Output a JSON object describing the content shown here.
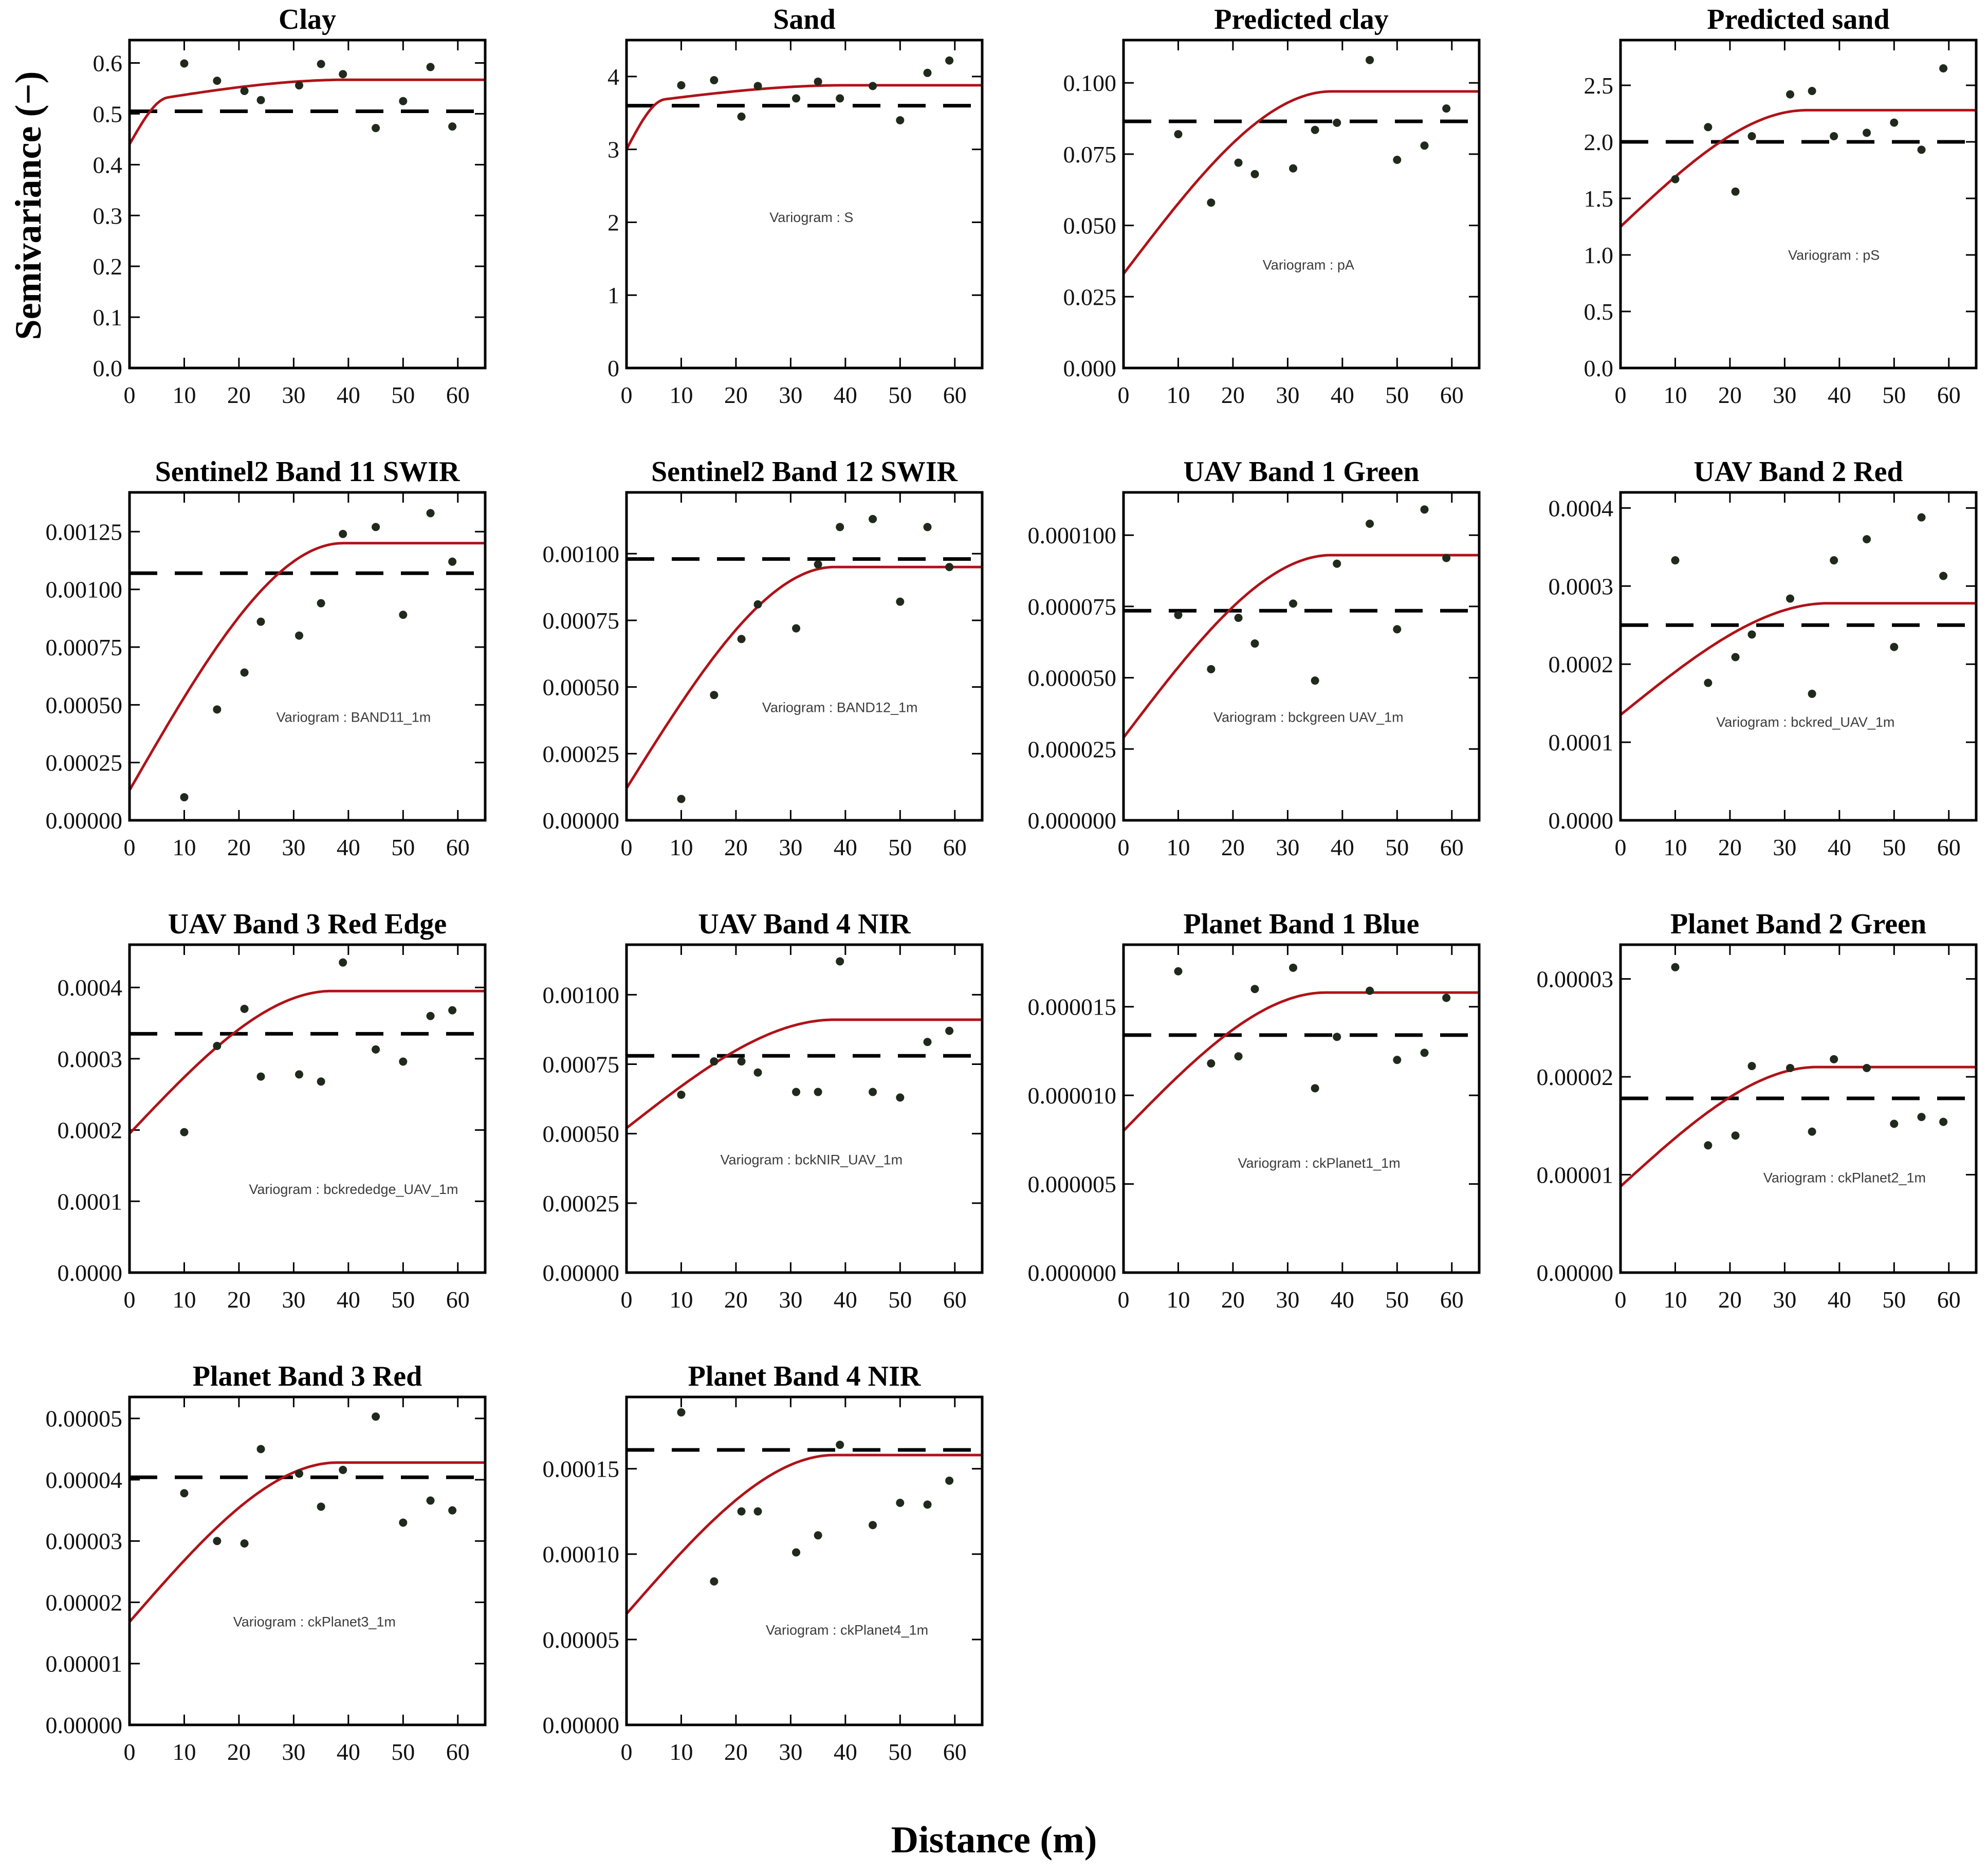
{
  "figure": {
    "y_axis_label": "Semivariance (−)",
    "x_axis_label": "Distance (m)"
  },
  "style": {
    "curve_color": "#b01218",
    "point_color": "#202a1c",
    "dash_color": "#000000",
    "frame_color": "#000000",
    "tick_text_color": "#111111",
    "variogram_label_color": "#3c3c3c"
  },
  "x_axis": {
    "tick_values": [
      0,
      10,
      20,
      30,
      40,
      50,
      60
    ],
    "tick_labels": [
      "0",
      "10",
      "20",
      "30",
      "40",
      "50",
      "60"
    ],
    "max": 65
  },
  "chart_data": [
    {
      "type": "scatter+line",
      "title": "Clay",
      "variogram_label": null,
      "label_pos": [
        0.52,
        0.3
      ],
      "ymax": 0.645,
      "ytick_values": [
        0.0,
        0.1,
        0.2,
        0.3,
        0.4,
        0.5,
        0.6
      ],
      "ytick_labels": [
        "0.0",
        "0.1",
        "0.2",
        "0.3",
        "0.4",
        "0.5",
        "0.6"
      ],
      "sill_dashed": 0.505,
      "model": {
        "nugget": 0.44,
        "components": [
          {
            "type": "sph",
            "c": 0.08,
            "range": 7
          },
          {
            "type": "sph",
            "c": 0.047,
            "range": 40
          }
        ]
      },
      "x": [
        10,
        16,
        21,
        24,
        31,
        35,
        39,
        45,
        50,
        55,
        59
      ],
      "y": [
        0.599,
        0.565,
        0.545,
        0.527,
        0.556,
        0.598,
        0.578,
        0.472,
        0.525,
        0.592,
        0.475
      ]
    },
    {
      "type": "scatter+line",
      "title": "Sand",
      "variogram_label": "Variogram : S",
      "label_pos": [
        0.52,
        0.445
      ],
      "ymax": 4.5,
      "ytick_values": [
        0,
        1,
        2,
        3,
        4
      ],
      "ytick_labels": [
        "0",
        "1",
        "2",
        "3",
        "4"
      ],
      "sill_dashed": 3.6,
      "model": {
        "nugget": 3.0,
        "components": [
          {
            "type": "sph",
            "c": 0.62,
            "range": 7
          },
          {
            "type": "sph",
            "c": 0.26,
            "range": 40
          }
        ]
      },
      "x": [
        10,
        16,
        21,
        24,
        31,
        35,
        39,
        45,
        50,
        55,
        59
      ],
      "y": [
        3.88,
        3.95,
        3.45,
        3.87,
        3.7,
        3.93,
        3.7,
        3.87,
        3.4,
        4.05,
        4.22
      ]
    },
    {
      "type": "scatter+line",
      "title": "Predicted clay",
      "variogram_label": "Variogram : pA",
      "label_pos": [
        0.52,
        0.3
      ],
      "ymax": 0.115,
      "ytick_values": [
        0.0,
        0.025,
        0.05,
        0.075,
        0.1
      ],
      "ytick_labels": [
        "0.000",
        "0.025",
        "0.050",
        "0.075",
        "0.100"
      ],
      "sill_dashed": 0.0865,
      "model": {
        "nugget": 0.033,
        "components": [
          {
            "type": "sph",
            "c": 0.064,
            "range": 38
          }
        ]
      },
      "x": [
        10,
        16,
        21,
        24,
        31,
        35,
        39,
        45,
        50,
        55,
        59
      ],
      "y": [
        0.082,
        0.058,
        0.072,
        0.068,
        0.07,
        0.0835,
        0.086,
        0.108,
        0.073,
        0.078,
        0.091
      ]
    },
    {
      "type": "scatter+line",
      "title": "Predicted sand",
      "variogram_label": "Variogram : pS",
      "label_pos": [
        0.6,
        0.33
      ],
      "ymax": 2.9,
      "ytick_values": [
        0.0,
        0.5,
        1.0,
        1.5,
        2.0,
        2.5
      ],
      "ytick_labels": [
        "0.0",
        "0.5",
        "1.0",
        "1.5",
        "2.0",
        "2.5"
      ],
      "sill_dashed": 2.0,
      "model": {
        "nugget": 1.25,
        "components": [
          {
            "type": "sph",
            "c": 1.03,
            "range": 34
          }
        ]
      },
      "x": [
        10,
        16,
        21,
        24,
        31,
        35,
        39,
        45,
        50,
        55,
        59
      ],
      "y": [
        1.67,
        2.13,
        1.56,
        2.05,
        2.42,
        2.45,
        2.05,
        2.08,
        2.17,
        1.93,
        2.65
      ]
    },
    {
      "type": "scatter+line",
      "title": "Sentinel2 Band 11 SWIR",
      "variogram_label": "Variogram : BAND11_1m",
      "label_pos": [
        0.63,
        0.3
      ],
      "ymax": 0.00142,
      "ytick_values": [
        0.0,
        0.00025,
        0.0005,
        0.00075,
        0.001,
        0.00125
      ],
      "ytick_labels": [
        "0.00000",
        "0.00025",
        "0.00050",
        "0.00075",
        "0.00100",
        "0.00125"
      ],
      "sill_dashed": 0.00107,
      "model": {
        "nugget": 0.00013,
        "components": [
          {
            "type": "sph",
            "c": 0.00107,
            "range": 39
          }
        ]
      },
      "x": [
        10,
        16,
        21,
        24,
        31,
        35,
        39,
        45,
        50,
        55,
        59
      ],
      "y": [
        0.0001,
        0.00048,
        0.00064,
        0.00086,
        0.0008,
        0.00094,
        0.00124,
        0.00127,
        0.00089,
        0.00133,
        0.00112
      ]
    },
    {
      "type": "scatter+line",
      "title": "Sentinel2 Band 12 SWIR",
      "variogram_label": "Variogram : BAND12_1m",
      "label_pos": [
        0.6,
        0.33
      ],
      "ymax": 0.00123,
      "ytick_values": [
        0.0,
        0.00025,
        0.0005,
        0.00075,
        0.001
      ],
      "ytick_labels": [
        "0.00000",
        "0.00025",
        "0.00050",
        "0.00075",
        "0.00100"
      ],
      "sill_dashed": 0.00098,
      "model": {
        "nugget": 0.00012,
        "components": [
          {
            "type": "sph",
            "c": 0.00083,
            "range": 38
          }
        ]
      },
      "x": [
        10,
        16,
        21,
        24,
        31,
        35,
        39,
        45,
        50,
        55,
        59
      ],
      "y": [
        8e-05,
        0.00047,
        0.00068,
        0.00081,
        0.00072,
        0.00096,
        0.0011,
        0.00113,
        0.00082,
        0.0011,
        0.00095
      ]
    },
    {
      "type": "scatter+line",
      "title": "UAV Band 1 Green",
      "variogram_label": "Variogram : bckgreen UAV_1m",
      "label_pos": [
        0.52,
        0.3
      ],
      "ymax": 0.000115,
      "ytick_values": [
        0.0,
        2.5e-05,
        5e-05,
        7.5e-05,
        0.0001
      ],
      "ytick_labels": [
        "0.000000",
        "0.000025",
        "0.000050",
        "0.000075",
        "0.000100"
      ],
      "sill_dashed": 7.35e-05,
      "model": {
        "nugget": 2.9e-05,
        "components": [
          {
            "type": "sph",
            "c": 6.4e-05,
            "range": 38
          }
        ]
      },
      "x": [
        10,
        16,
        21,
        24,
        31,
        35,
        39,
        45,
        50,
        55,
        59
      ],
      "y": [
        7.2e-05,
        5.3e-05,
        7.1e-05,
        6.2e-05,
        7.6e-05,
        4.9e-05,
        9e-05,
        0.000104,
        6.7e-05,
        0.000109,
        9.2e-05
      ]
    },
    {
      "type": "scatter+line",
      "title": "UAV Band 2 Red",
      "variogram_label": "Variogram : bckred_UAV_1m",
      "label_pos": [
        0.52,
        0.285
      ],
      "ymax": 0.00042,
      "ytick_values": [
        0.0,
        0.0001,
        0.0002,
        0.0003,
        0.0004
      ],
      "ytick_labels": [
        "0.0000",
        "0.0001",
        "0.0002",
        "0.0003",
        "0.0004"
      ],
      "sill_dashed": 0.00025,
      "model": {
        "nugget": 0.000135,
        "components": [
          {
            "type": "sph",
            "c": 0.000143,
            "range": 38
          }
        ]
      },
      "x": [
        10,
        16,
        21,
        24,
        31,
        35,
        39,
        45,
        50,
        55,
        59
      ],
      "y": [
        0.000333,
        0.000176,
        0.000209,
        0.000238,
        0.000284,
        0.000162,
        0.000333,
        0.00036,
        0.000222,
        0.000388,
        0.000313
      ]
    },
    {
      "type": "scatter+line",
      "title": "UAV Band 3 Red Edge",
      "variogram_label": "Variogram : bckrededge_UAV_1m",
      "label_pos": [
        0.63,
        0.24
      ],
      "ymax": 0.00046,
      "ytick_values": [
        0.0,
        0.0001,
        0.0002,
        0.0003,
        0.0004
      ],
      "ytick_labels": [
        "0.0000",
        "0.0001",
        "0.0002",
        "0.0003",
        "0.0004"
      ],
      "sill_dashed": 0.000335,
      "model": {
        "nugget": 0.000195,
        "components": [
          {
            "type": "sph",
            "c": 0.0002,
            "range": 37
          }
        ]
      },
      "x": [
        10,
        16,
        21,
        24,
        31,
        35,
        39,
        45,
        50,
        55,
        59
      ],
      "y": [
        0.000197,
        0.000318,
        0.00037,
        0.000275,
        0.000278,
        0.000268,
        0.000435,
        0.000313,
        0.000296,
        0.00036,
        0.000368
      ]
    },
    {
      "type": "scatter+line",
      "title": "UAV Band 4 NIR",
      "variogram_label": "Variogram : bckNIR_UAV_1m",
      "label_pos": [
        0.52,
        0.33
      ],
      "ymax": 0.00118,
      "ytick_values": [
        0.0,
        0.00025,
        0.0005,
        0.00075,
        0.001
      ],
      "ytick_labels": [
        "0.00000",
        "0.00025",
        "0.00050",
        "0.00075",
        "0.00100"
      ],
      "sill_dashed": 0.00078,
      "model": {
        "nugget": 0.00052,
        "components": [
          {
            "type": "sph",
            "c": 0.00039,
            "range": 38
          }
        ]
      },
      "x": [
        10,
        16,
        21,
        24,
        31,
        35,
        39,
        45,
        50,
        55,
        59
      ],
      "y": [
        0.00064,
        0.00076,
        0.00076,
        0.00072,
        0.00065,
        0.00065,
        0.00112,
        0.00065,
        0.00063,
        0.00083,
        0.00087
      ]
    },
    {
      "type": "scatter+line",
      "title": "Planet Band 1 Blue",
      "variogram_label": "Variogram : ckPlanet1_1m",
      "label_pos": [
        0.55,
        0.32
      ],
      "ymax": 1.85e-05,
      "ytick_values": [
        0.0,
        5e-06,
        1e-05,
        1.5e-05
      ],
      "ytick_labels": [
        "0.000000",
        "0.000005",
        "0.000010",
        "0.000015"
      ],
      "sill_dashed": 1.34e-05,
      "model": {
        "nugget": 8e-06,
        "components": [
          {
            "type": "sph",
            "c": 7.8e-06,
            "range": 37
          }
        ]
      },
      "x": [
        10,
        16,
        21,
        24,
        31,
        35,
        39,
        45,
        50,
        55,
        59
      ],
      "y": [
        1.7e-05,
        1.18e-05,
        1.22e-05,
        1.6e-05,
        1.72e-05,
        1.04e-05,
        1.33e-05,
        1.59e-05,
        1.2e-05,
        1.24e-05,
        1.55e-05
      ]
    },
    {
      "type": "scatter+line",
      "title": "Planet Band 2 Green",
      "variogram_label": "Variogram : ckPlanet2_1m",
      "label_pos": [
        0.63,
        0.275
      ],
      "ymax": 3.35e-05,
      "ytick_values": [
        0.0,
        1e-05,
        2e-05,
        3e-05
      ],
      "ytick_labels": [
        "0.00000",
        "0.00001",
        "0.00002",
        "0.00003"
      ],
      "sill_dashed": 1.78e-05,
      "model": {
        "nugget": 8.8e-06,
        "components": [
          {
            "type": "sph",
            "c": 1.22e-05,
            "range": 36
          }
        ]
      },
      "x": [
        10,
        16,
        21,
        24,
        31,
        35,
        39,
        45,
        50,
        55,
        59
      ],
      "y": [
        3.12e-05,
        1.3e-05,
        1.4e-05,
        2.11e-05,
        2.09e-05,
        1.44e-05,
        2.18e-05,
        2.09e-05,
        1.52e-05,
        1.59e-05,
        1.54e-05
      ]
    },
    {
      "type": "scatter+line",
      "title": "Planet Band 3 Red",
      "variogram_label": "Variogram : ckPlanet3_1m",
      "label_pos": [
        0.52,
        0.3
      ],
      "ymax": 5.35e-05,
      "ytick_values": [
        0.0,
        1e-05,
        2e-05,
        3e-05,
        4e-05,
        5e-05
      ],
      "ytick_labels": [
        "0.00000",
        "0.00001",
        "0.00002",
        "0.00003",
        "0.00004",
        "0.00005"
      ],
      "sill_dashed": 4.04e-05,
      "model": {
        "nugget": 1.68e-05,
        "components": [
          {
            "type": "sph",
            "c": 2.6e-05,
            "range": 38
          }
        ]
      },
      "x": [
        10,
        16,
        21,
        24,
        31,
        35,
        39,
        45,
        50,
        55,
        59
      ],
      "y": [
        3.78e-05,
        3e-05,
        2.96e-05,
        4.5e-05,
        4.1e-05,
        3.56e-05,
        4.16e-05,
        5.03e-05,
        3.3e-05,
        3.66e-05,
        3.5e-05
      ]
    },
    {
      "type": "scatter+line",
      "title": "Planet Band 4 NIR",
      "variogram_label": "Variogram : ckPlanet4_1m",
      "label_pos": [
        0.62,
        0.275
      ],
      "ymax": 0.000192,
      "ytick_values": [
        0.0,
        5e-05,
        0.0001,
        0.00015
      ],
      "ytick_labels": [
        "0.00000",
        "0.00005",
        "0.00010",
        "0.00015"
      ],
      "sill_dashed": 0.000161,
      "model": {
        "nugget": 6.5e-05,
        "components": [
          {
            "type": "sph",
            "c": 9.3e-05,
            "range": 38
          }
        ]
      },
      "x": [
        10,
        16,
        21,
        24,
        31,
        35,
        39,
        45,
        50,
        55,
        59
      ],
      "y": [
        0.000183,
        8.4e-05,
        0.000125,
        0.000125,
        0.000101,
        0.000111,
        0.000164,
        0.000117,
        0.00013,
        0.000129,
        0.000143
      ]
    }
  ]
}
